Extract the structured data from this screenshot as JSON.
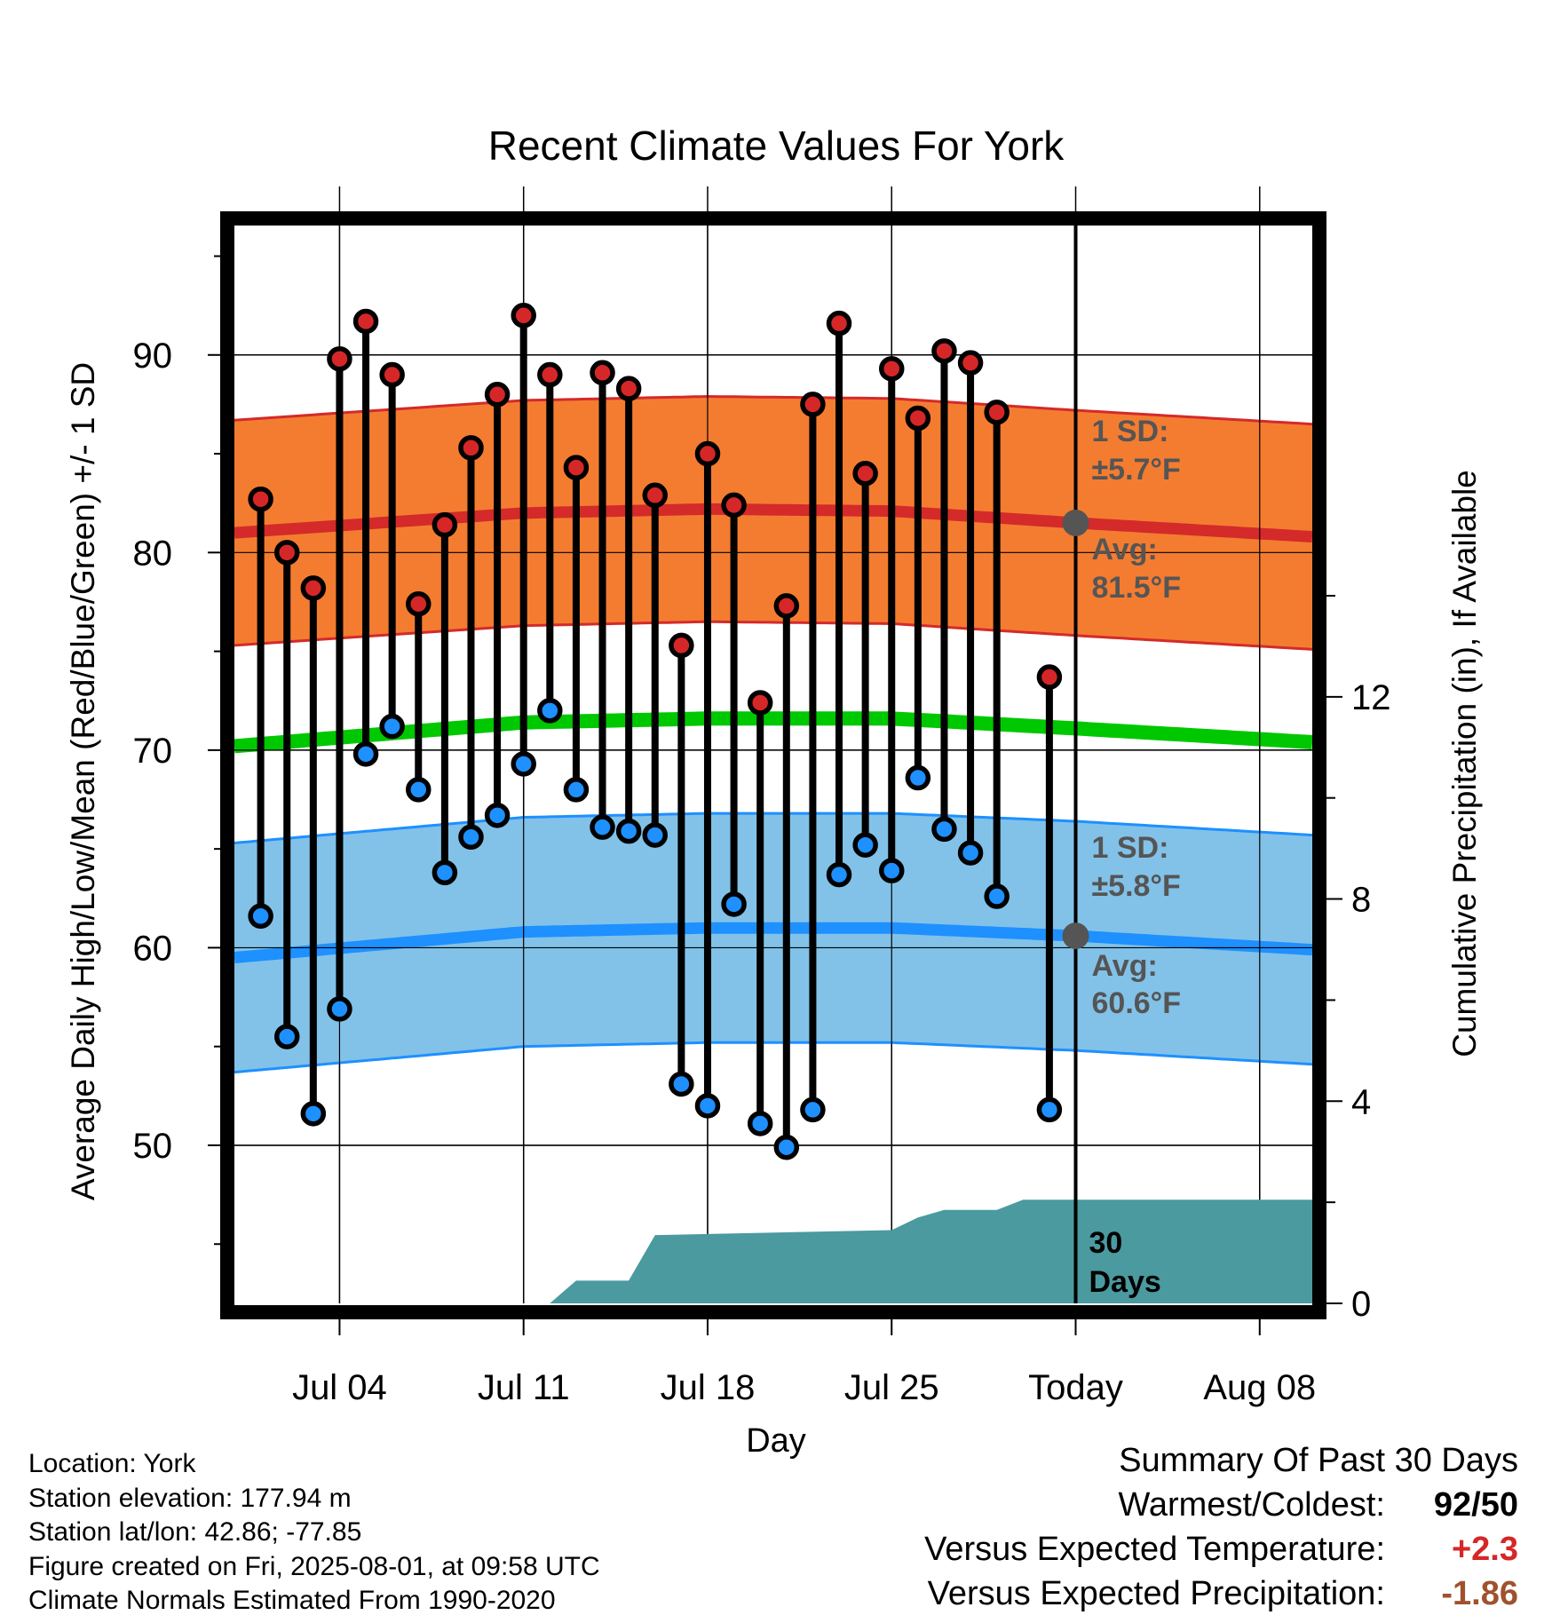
{
  "chart_data": {
    "type": "line",
    "title": "Recent Climate Values For York",
    "xlabel": "Day",
    "ylabel": "Average Daily High/Low/Mean (Red/Blue/Green) +/- 1 SD",
    "ylabel_right": "Cumulative Precipitation (in), If Available",
    "x_ticks": [
      "Jul 04",
      "Jul 11",
      "Jul 18",
      "Jul 25",
      "Today",
      "Aug 08"
    ],
    "x_tick_dates": [
      "2025-07-04",
      "2025-07-11",
      "2025-07-18",
      "2025-07-25",
      "2025-08-01",
      "2025-08-08"
    ],
    "xlim": [
      "2025-06-30",
      "2025-08-10"
    ],
    "today": "2025-08-01",
    "y_ticks": [
      50,
      60,
      70,
      80,
      90
    ],
    "ylim": [
      42,
      97
    ],
    "y2_ticks": [
      0,
      4,
      8,
      12
    ],
    "y2lim": [
      0,
      21.5
    ],
    "grid": true,
    "dates": [
      "2025-07-01",
      "2025-07-02",
      "2025-07-03",
      "2025-07-04",
      "2025-07-05",
      "2025-07-06",
      "2025-07-07",
      "2025-07-08",
      "2025-07-09",
      "2025-07-10",
      "2025-07-11",
      "2025-07-12",
      "2025-07-13",
      "2025-07-14",
      "2025-07-15",
      "2025-07-16",
      "2025-07-17",
      "2025-07-18",
      "2025-07-19",
      "2025-07-20",
      "2025-07-21",
      "2025-07-22",
      "2025-07-23",
      "2025-07-24",
      "2025-07-25",
      "2025-07-26",
      "2025-07-27",
      "2025-07-28",
      "2025-07-29",
      "2025-07-30",
      "2025-07-31"
    ],
    "series": [
      {
        "name": "High",
        "color": "#d62728",
        "values": [
          82.7,
          80.0,
          78.2,
          89.8,
          91.7,
          89.0,
          77.4,
          81.4,
          85.3,
          88.0,
          92.0,
          89.0,
          84.3,
          89.1,
          88.3,
          82.9,
          75.3,
          85.0,
          82.4,
          72.4,
          77.3,
          87.5,
          91.6,
          84.0,
          89.3,
          86.8,
          90.2,
          89.6,
          87.1,
          null,
          73.7
        ]
      },
      {
        "name": "Low",
        "color": "#1e90ff",
        "values": [
          61.6,
          55.5,
          51.6,
          56.9,
          69.8,
          71.2,
          68.0,
          63.8,
          65.6,
          66.7,
          69.3,
          72.0,
          68.0,
          66.1,
          65.9,
          65.7,
          53.1,
          52.0,
          62.2,
          51.1,
          49.9,
          51.8,
          63.7,
          65.2,
          63.9,
          68.6,
          66.0,
          64.8,
          62.6,
          null,
          51.8
        ]
      }
    ],
    "normals": {
      "high_mean": {
        "dates": [
          "2025-06-30",
          "2025-07-11",
          "2025-07-18",
          "2025-07-25",
          "2025-08-01",
          "2025-08-10"
        ],
        "values": [
          81.0,
          82.0,
          82.2,
          82.1,
          81.5,
          80.8
        ]
      },
      "high_sd": 5.7,
      "low_mean": {
        "dates": [
          "2025-06-30",
          "2025-07-11",
          "2025-07-18",
          "2025-07-25",
          "2025-08-01",
          "2025-08-10"
        ],
        "values": [
          59.5,
          60.8,
          61.0,
          61.0,
          60.6,
          59.9
        ]
      },
      "low_sd": 5.8,
      "mean": {
        "dates": [
          "2025-06-30",
          "2025-07-11",
          "2025-07-18",
          "2025-07-25",
          "2025-08-01",
          "2025-08-10"
        ],
        "values": [
          70.2,
          71.4,
          71.6,
          71.6,
          71.1,
          70.4
        ]
      }
    },
    "precipitation": {
      "dates": [
        "2025-07-12",
        "2025-07-13",
        "2025-07-15",
        "2025-07-16",
        "2025-07-25",
        "2025-07-26",
        "2025-07-27",
        "2025-07-29",
        "2025-07-30",
        "2025-08-10"
      ],
      "values": [
        0.0,
        0.45,
        0.45,
        1.35,
        1.45,
        1.7,
        1.85,
        1.85,
        2.05,
        2.05
      ]
    },
    "annotations": {
      "high_sd_label": "1 SD:",
      "high_sd_value": "±5.7°F",
      "high_avg_label": "Avg:",
      "high_avg_value": "81.5°F",
      "low_sd_label": "1 SD:",
      "low_sd_value": "±5.8°F",
      "low_avg_label": "Avg:",
      "low_avg_value": "60.6°F",
      "days_number": "30",
      "days_label": "Days"
    },
    "colors": {
      "high_band": "#f47c30",
      "high_line": "#d42a2a",
      "low_band": "#82c2e8",
      "low_line": "#1e90ff",
      "mean_line": "#00c800",
      "precip": "#4a9aa0",
      "annotation": "#555555"
    }
  },
  "info": {
    "location": "Location: York",
    "elevation": "Station elevation: 177.94 m",
    "latlon": "Station lat/lon: 42.86; -77.85",
    "created": "Figure created on Fri, 2025-08-01, at 09:58 UTC",
    "normals": "Climate Normals Estimated From 1990-2020"
  },
  "summary": {
    "title": "Summary Of Past 30 Days",
    "warmest_coldest_label": "Warmest/Coldest:",
    "warmest_coldest_value": "92/50",
    "temp_label": "Versus Expected Temperature:",
    "temp_value": "+2.3",
    "temp_color": "#d62728",
    "precip_label": "Versus Expected Precipitation:",
    "precip_value": "-1.86",
    "precip_color": "#a0522d"
  }
}
